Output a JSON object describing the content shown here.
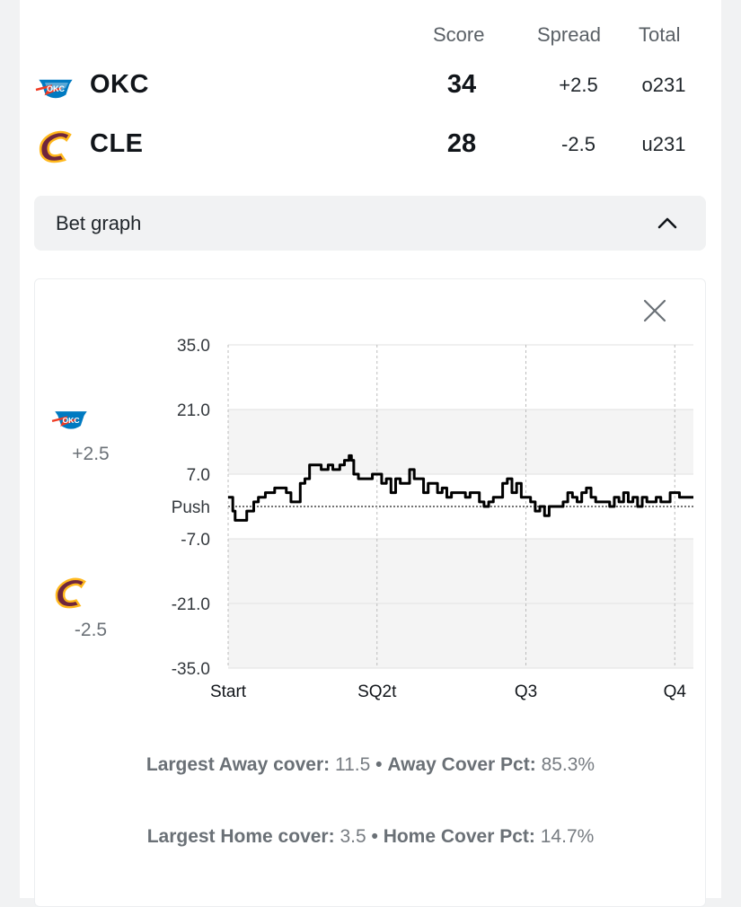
{
  "header": {
    "score": "Score",
    "spread": "Spread",
    "total": "Total"
  },
  "teams": [
    {
      "abbr": "OKC",
      "score": "34",
      "spread": "+2.5",
      "total": "o231",
      "logo": "okc-thunder-logo"
    },
    {
      "abbr": "CLE",
      "score": "28",
      "spread": "-2.5",
      "total": "u231",
      "logo": "cle-cavaliers-logo"
    }
  ],
  "bet_graph": {
    "label": "Bet graph",
    "toggle_icon": "chevron-up-icon",
    "close_icon": "close-icon"
  },
  "side_labels": {
    "away_spread": "+2.5",
    "home_spread": "-2.5"
  },
  "chart_data": {
    "type": "line",
    "ylim": [
      -35,
      35
    ],
    "y_ticks": [
      "35.0",
      "21.0",
      "7.0",
      "Push",
      "-7.0",
      "-21.0",
      "-35.0"
    ],
    "x_ticks": [
      "Start",
      "SQ2t",
      "Q3",
      "Q4"
    ],
    "grid": true,
    "series": [
      {
        "x": [
          0,
          1,
          1.5,
          3,
          4,
          5.5,
          6.5,
          8,
          9,
          10,
          11,
          12.5,
          13.5,
          15.5,
          16.5,
          17.5,
          20,
          21.5,
          22.5,
          24,
          25,
          26,
          26.5,
          27,
          28,
          30,
          31,
          33,
          34,
          35,
          36,
          37,
          39,
          40,
          41,
          42,
          43,
          45,
          46,
          47,
          48,
          50,
          51,
          52,
          53,
          54,
          55,
          56,
          57,
          58,
          59,
          60,
          61,
          62,
          63,
          65,
          66,
          67,
          68,
          69,
          70,
          72,
          73,
          74,
          75,
          76,
          77,
          78,
          79,
          80,
          82,
          83,
          84,
          85,
          86,
          87,
          88,
          89,
          90,
          91,
          92,
          93,
          94,
          95,
          96,
          97,
          98,
          99,
          100
        ],
        "y": [
          2,
          -1,
          -3,
          -3,
          -1,
          1,
          2,
          3,
          3,
          4,
          4,
          3,
          1,
          5,
          6,
          9,
          8,
          9,
          8,
          9,
          10,
          11,
          10,
          7,
          6,
          6,
          7,
          5,
          6,
          3,
          6,
          5,
          8,
          6,
          6,
          3,
          5,
          3,
          4,
          2,
          3,
          3,
          2,
          3,
          3,
          1,
          0,
          1,
          2,
          2,
          5,
          6,
          3,
          5,
          2,
          1,
          -1,
          0,
          -2,
          0,
          0,
          1,
          3,
          2,
          1,
          3,
          4,
          2,
          1,
          1,
          0,
          2,
          1,
          3,
          1,
          2,
          0,
          2,
          1,
          1,
          2,
          1,
          1,
          3,
          3,
          2,
          2,
          2,
          2
        ]
      }
    ]
  },
  "stats": {
    "away_cover_label": "Largest Away cover:",
    "away_cover_value": "11.5",
    "away_pct_label": "Away Cover Pct:",
    "away_pct_value": "85.3%",
    "home_cover_label": "Largest Home cover:",
    "home_cover_value": "3.5",
    "home_pct_label": "Home Cover Pct:",
    "home_pct_value": "14.7%",
    "separator": "•"
  },
  "colors": {
    "okc_blue": "#007ac1",
    "okc_orange": "#ef3b24",
    "cle_wine": "#6f263d",
    "cle_gold": "#ffb81c",
    "line": "#000000"
  }
}
